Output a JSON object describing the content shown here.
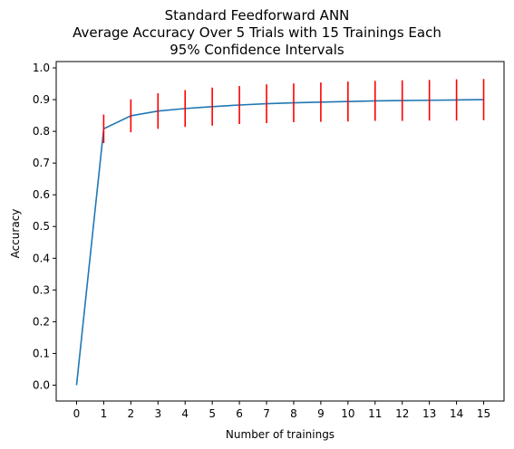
{
  "chart_data": {
    "type": "line",
    "title_lines": [
      "Standard Feedforward ANN",
      "Average Accuracy Over 5 Trials with 15 Trainings Each",
      "95% Confidence Intervals"
    ],
    "xlabel": "Number of trainings",
    "ylabel": "Accuracy",
    "xlim": [
      -0.75,
      15.75
    ],
    "ylim": [
      -0.05,
      1.02
    ],
    "xticks": [
      0,
      1,
      2,
      3,
      4,
      5,
      6,
      7,
      8,
      9,
      10,
      11,
      12,
      13,
      14,
      15
    ],
    "yticks": [
      0.0,
      0.1,
      0.2,
      0.3,
      0.4,
      0.5,
      0.6,
      0.7,
      0.8,
      0.9,
      1.0
    ],
    "ytick_labels": [
      "0.0",
      "0.1",
      "0.2",
      "0.3",
      "0.4",
      "0.5",
      "0.6",
      "0.7",
      "0.8",
      "0.9",
      "1.0"
    ],
    "grid": false,
    "series": [
      {
        "line_color": "#1f77b4",
        "errorbar_color": "#ff0000",
        "x": [
          0,
          1,
          2,
          3,
          4,
          5,
          6,
          7,
          8,
          9,
          10,
          11,
          12,
          13,
          14,
          15
        ],
        "y": [
          0.0,
          0.808,
          0.849,
          0.864,
          0.872,
          0.878,
          0.883,
          0.887,
          0.89,
          0.892,
          0.894,
          0.896,
          0.897,
          0.898,
          0.899,
          0.9
        ],
        "error": [
          null,
          0.045,
          0.052,
          0.056,
          0.058,
          0.06,
          0.06,
          0.061,
          0.061,
          0.062,
          0.063,
          0.063,
          0.064,
          0.064,
          0.065,
          0.065
        ]
      }
    ]
  }
}
